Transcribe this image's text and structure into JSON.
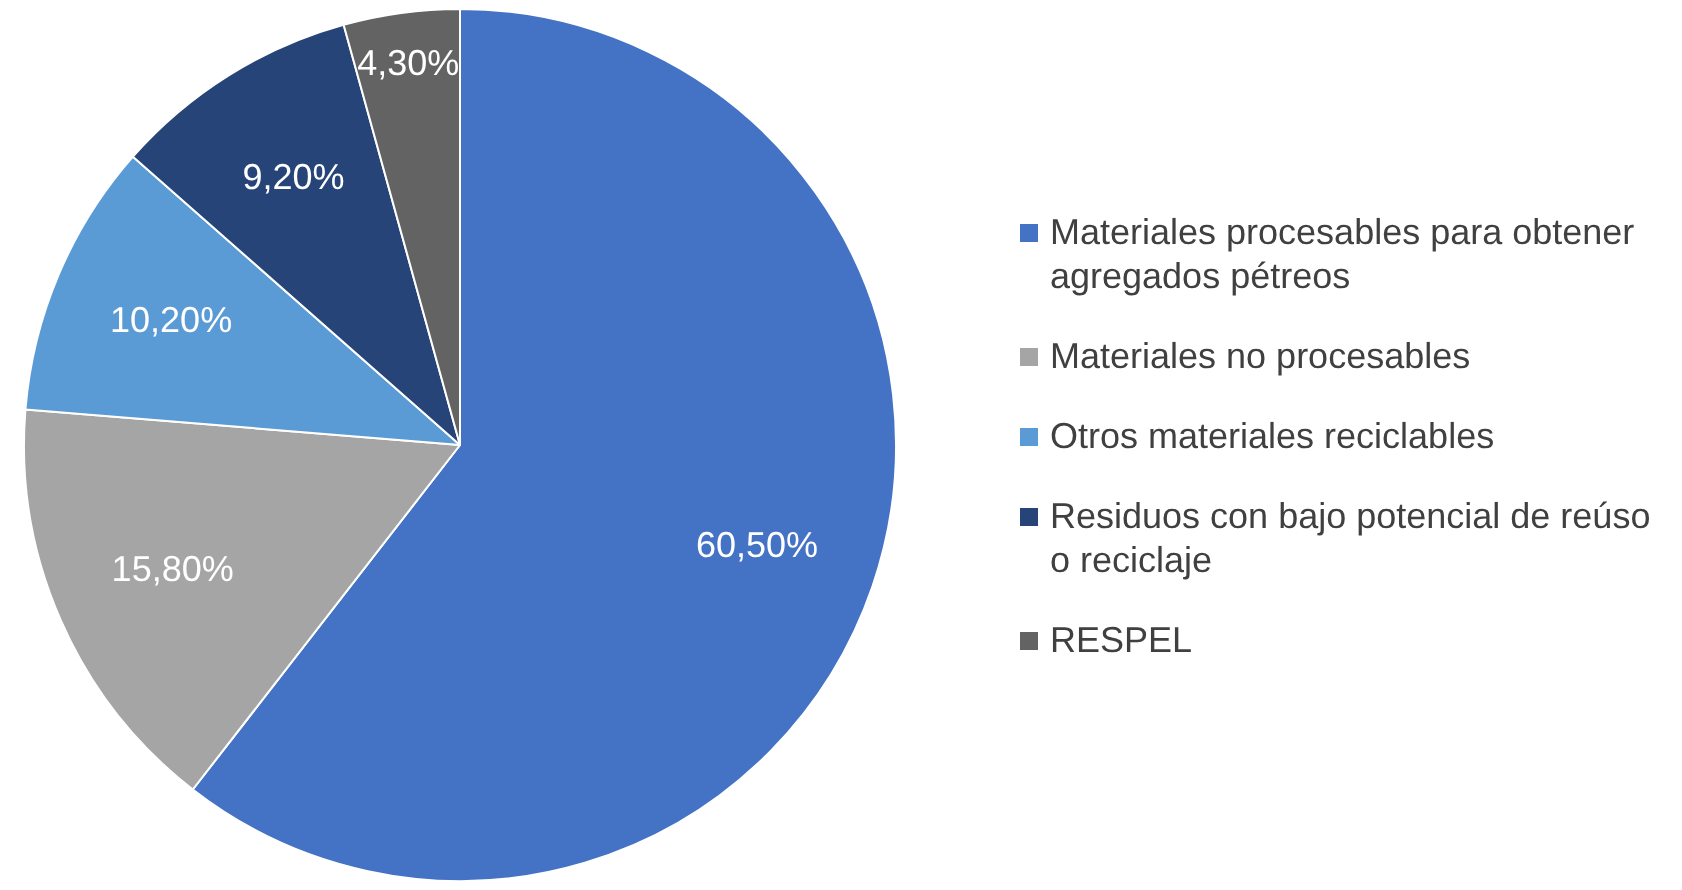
{
  "chart_data": {
    "type": "pie",
    "categories": [
      "Materiales procesables para obtener agregados pétreos",
      "Materiales no procesables",
      "Otros materiales reciclables",
      "Residuos con bajo potencial de reúso o reciclaje",
      "RESPEL"
    ],
    "values": [
      60.5,
      15.8,
      10.2,
      9.2,
      4.3
    ],
    "colors": [
      "#4472c4",
      "#a5a5a5",
      "#5b9bd5",
      "#264478",
      "#636363"
    ],
    "value_labels": [
      "60,50%",
      "15,80%",
      "10,20%",
      "9,20%",
      "4,30%"
    ],
    "legend": "right"
  }
}
